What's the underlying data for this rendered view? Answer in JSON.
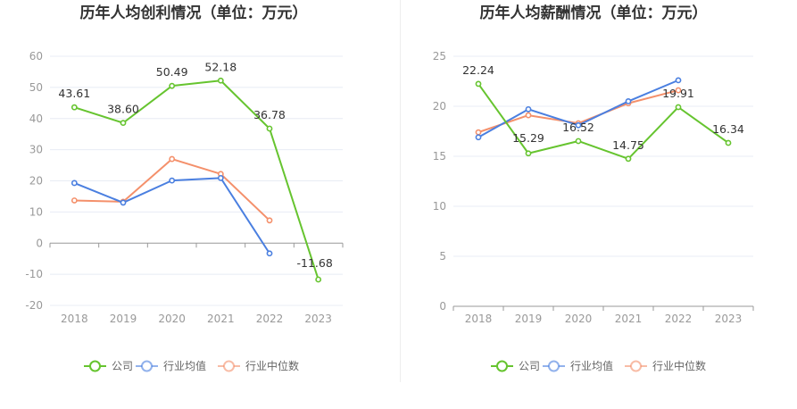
{
  "colors": {
    "company": "#66c42f",
    "industry_avg": "#4a7fe0",
    "industry_median": "#f4906b",
    "grid": "#e8ecf4",
    "axis": "#999999",
    "divider": "#eeeeee"
  },
  "legend": [
    "公司",
    "行业均值",
    "行业中位数"
  ],
  "chart_data": [
    {
      "type": "line",
      "title": "历年人均创利情况（单位：万元）",
      "categories": [
        "2018",
        "2019",
        "2020",
        "2021",
        "2022",
        "2023"
      ],
      "ylim": [
        -20,
        60
      ],
      "yticks": [
        60,
        50,
        40,
        30,
        20,
        10,
        0,
        -10,
        -20
      ],
      "series": [
        {
          "name": "公司",
          "key": "company",
          "values": [
            43.61,
            38.6,
            50.49,
            52.18,
            36.78,
            -11.68
          ],
          "labels": [
            "43.61",
            "38.60",
            "50.49",
            "52.18",
            "36.78",
            "-11.68"
          ]
        },
        {
          "name": "行业均值",
          "key": "industry_avg",
          "values": [
            19.3,
            13.0,
            20.1,
            20.9,
            -3.3,
            null
          ]
        },
        {
          "name": "行业中位数",
          "key": "industry_median",
          "values": [
            13.7,
            13.3,
            27.0,
            22.2,
            7.3,
            null
          ]
        }
      ]
    },
    {
      "type": "line",
      "title": "历年人均薪酬情况（单位：万元）",
      "categories": [
        "2018",
        "2019",
        "2020",
        "2021",
        "2022",
        "2023"
      ],
      "ylim": [
        0,
        25
      ],
      "yticks": [
        25,
        20,
        15,
        10,
        5,
        0
      ],
      "series": [
        {
          "name": "公司",
          "key": "company",
          "values": [
            22.24,
            15.29,
            16.52,
            14.75,
            19.91,
            16.34
          ],
          "labels": [
            "22.24",
            "15.29",
            "16.52",
            "14.75",
            "19.91",
            "16.34"
          ]
        },
        {
          "name": "行业均值",
          "key": "industry_avg",
          "values": [
            16.9,
            19.7,
            18.1,
            20.5,
            22.6,
            null
          ]
        },
        {
          "name": "行业中位数",
          "key": "industry_median",
          "values": [
            17.4,
            19.1,
            18.3,
            20.3,
            21.6,
            null
          ]
        }
      ]
    }
  ]
}
